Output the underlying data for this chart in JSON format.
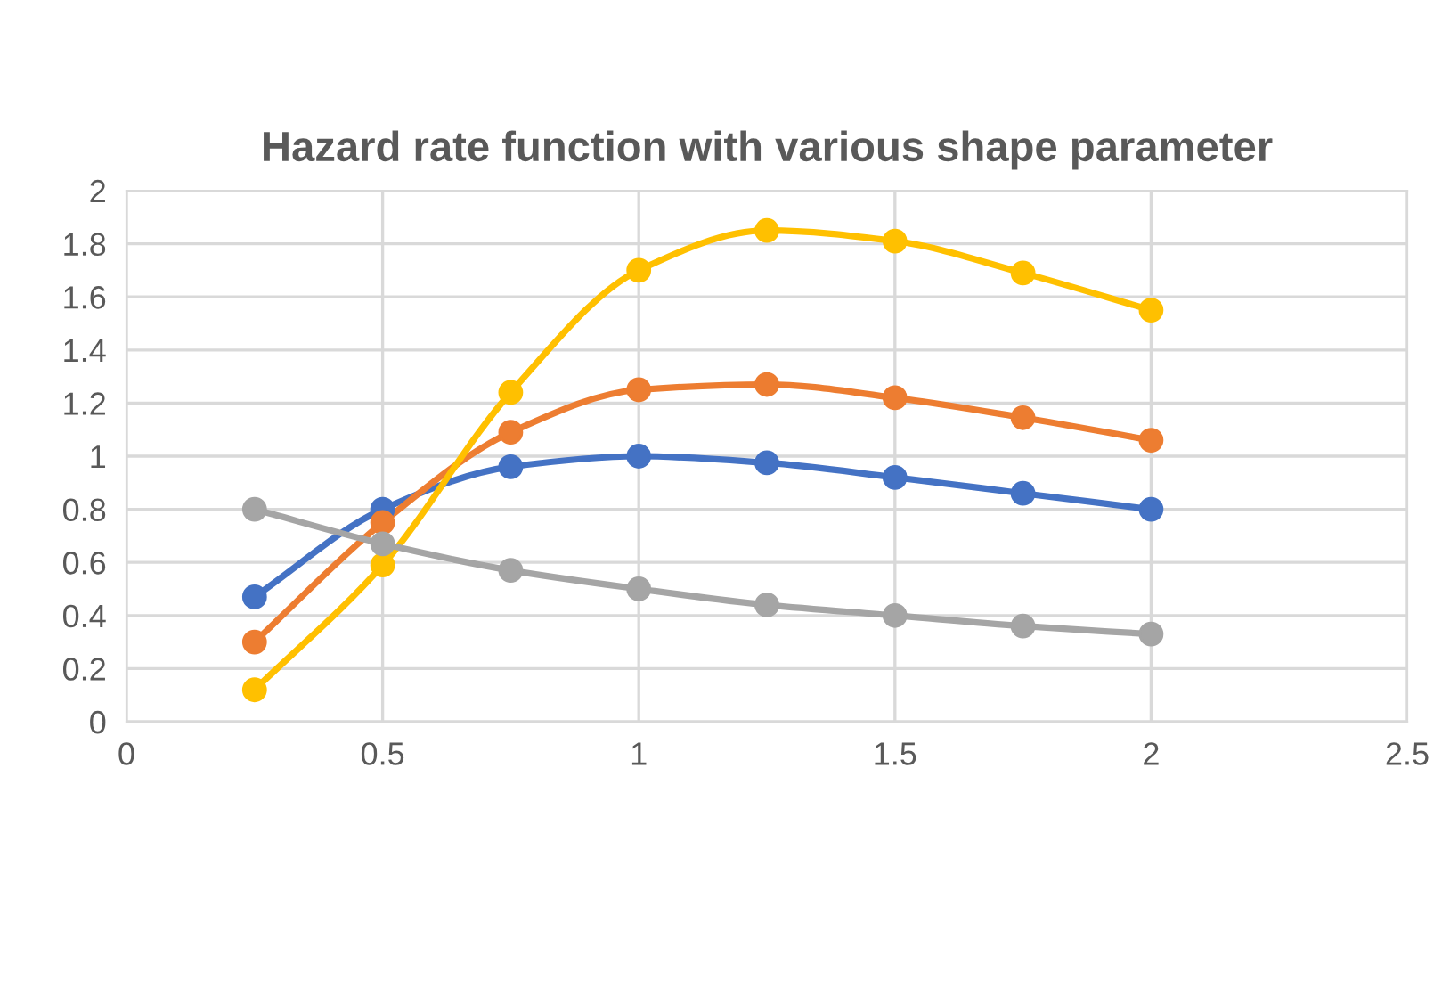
{
  "chart_data": {
    "type": "line",
    "title": "Hazard rate function with various shape parameter",
    "x": [
      0.25,
      0.5,
      0.75,
      1,
      1.25,
      1.5,
      1.75,
      2
    ],
    "series": [
      {
        "color": "#4472c4",
        "values": [
          0.47,
          0.8,
          0.96,
          1.0,
          0.975,
          0.92,
          0.86,
          0.8
        ]
      },
      {
        "color": "#ed7d31",
        "values": [
          0.3,
          0.75,
          1.09,
          1.25,
          1.27,
          1.22,
          1.145,
          1.06
        ]
      },
      {
        "color": "#ffc000",
        "values": [
          0.12,
          0.59,
          1.24,
          1.7,
          1.85,
          1.81,
          1.69,
          1.55
        ]
      },
      {
        "color": "#a5a5a5",
        "values": [
          0.8,
          0.67,
          0.57,
          0.5,
          0.44,
          0.4,
          0.36,
          0.33
        ]
      }
    ],
    "xlim": [
      0,
      2.5
    ],
    "xticks": [
      0,
      0.5,
      1,
      1.5,
      2,
      2.5
    ],
    "ylim": [
      0,
      2
    ],
    "yticks": [
      0,
      0.2,
      0.4,
      0.6,
      0.8,
      1,
      1.2,
      1.4,
      1.6,
      1.8,
      2
    ],
    "grid": true,
    "marker": "circle",
    "line_style": "solid",
    "legend": false
  }
}
